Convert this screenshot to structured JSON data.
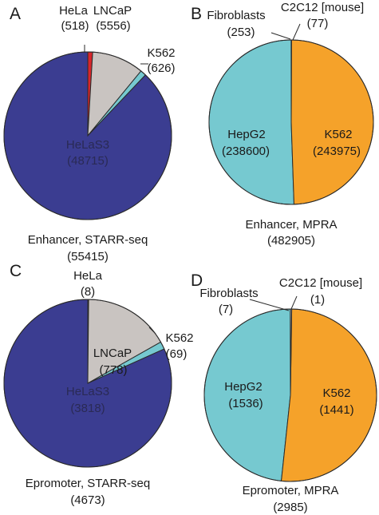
{
  "chart_data": [
    {
      "type": "pie",
      "panel": "A",
      "caption": [
        "Enhancer, STARR-seq",
        "(55415)"
      ],
      "slices": [
        {
          "label": "HeLa",
          "count": "(518)",
          "value": 518,
          "color": "#d7262b"
        },
        {
          "label": "LNCaP",
          "count": "(5556)",
          "value": 5556,
          "color": "#c9c4c1"
        },
        {
          "label": "K562",
          "count": "(626)",
          "value": 626,
          "color": "#76c9d0"
        },
        {
          "label": "HeLaS3",
          "count": "(48715)",
          "value": 48715,
          "color": "#3b3d91"
        }
      ]
    },
    {
      "type": "pie",
      "panel": "B",
      "caption": [
        "Enhancer, MPRA",
        "(482905)"
      ],
      "slices": [
        {
          "label": "C2C12 [mouse]",
          "count": "(77)",
          "value": 77,
          "color": "#c9c4c1"
        },
        {
          "label": "K562",
          "count": "(243975)",
          "value": 243975,
          "color": "#76c9d0"
        },
        {
          "label": "HepG2",
          "count": "(238600)",
          "value": 238600,
          "color": "#f5a22a"
        },
        {
          "label": "Fibroblasts",
          "count": "(253)",
          "value": 253,
          "color": "#c9c4c1"
        }
      ]
    },
    {
      "type": "pie",
      "panel": "C",
      "caption": [
        "Epromoter, STARR-seq",
        "(4673)"
      ],
      "slices": [
        {
          "label": "HeLa",
          "count": "(8)",
          "value": 8,
          "color": "#d7262b"
        },
        {
          "label": "LNCaP",
          "count": "(778)",
          "value": 778,
          "color": "#c9c4c1"
        },
        {
          "label": "K562",
          "count": "(69)",
          "value": 69,
          "color": "#76c9d0"
        },
        {
          "label": "HeLaS3",
          "count": "(3818)",
          "value": 3818,
          "color": "#3b3d91"
        }
      ]
    },
    {
      "type": "pie",
      "panel": "D",
      "caption": [
        "Epromoter, MPRA",
        "(2985)"
      ],
      "slices": [
        {
          "label": "C2C12 [mouse]",
          "count": "(1)",
          "value": 1,
          "color": "#c9c4c1"
        },
        {
          "label": "K562",
          "count": "(1441)",
          "value": 1441,
          "color": "#76c9d0"
        },
        {
          "label": "HepG2",
          "count": "(1536)",
          "value": 1536,
          "color": "#f5a22a"
        },
        {
          "label": "Fibroblasts",
          "count": "(7)",
          "value": 7,
          "color": "#c9c4c1"
        }
      ]
    }
  ]
}
